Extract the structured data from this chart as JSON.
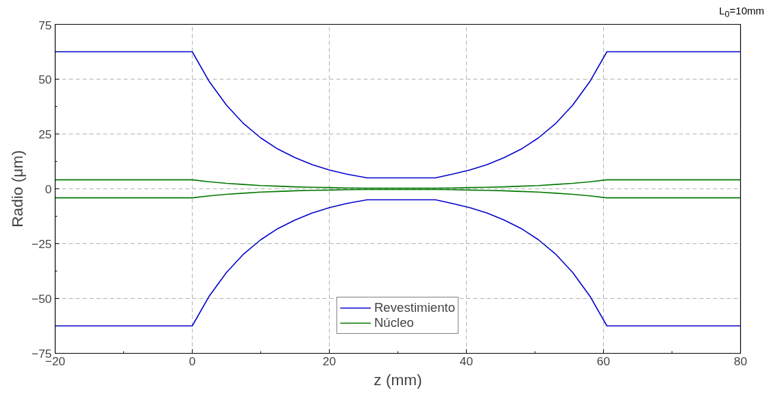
{
  "chart_data": {
    "type": "line",
    "xlabel": "z (mm)",
    "ylabel": "Radio (μm)",
    "annotations": [
      "L$_{0}$=10mm"
    ],
    "xlim": [
      -20,
      80
    ],
    "xticks": [
      -20,
      0,
      20,
      40,
      60,
      80
    ],
    "ylim": [
      -75,
      75
    ],
    "yticks": [
      -75,
      -50,
      -25,
      0,
      25,
      50,
      75
    ],
    "grid": true,
    "legend": "bottom",
    "line_style": "solid",
    "marker": "none",
    "x": [
      -20,
      0,
      2.5,
      5,
      7.5,
      10,
      12.5,
      15,
      17.5,
      20,
      22.5,
      25.5,
      35.5,
      38,
      40.5,
      43,
      45.5,
      48,
      50.5,
      53,
      55.5,
      58,
      60.5,
      80
    ],
    "series": [
      {
        "name": "Revestimiento",
        "color": "#0000cc",
        "values": [
          62.5,
          62.5,
          48.8,
          38.1,
          29.7,
          23.2,
          18.1,
          14.2,
          11.0,
          8.6,
          6.7,
          5.0,
          5.0,
          6.7,
          8.6,
          11.0,
          14.2,
          18.1,
          23.2,
          29.7,
          38.1,
          48.8,
          62.5,
          62.5
        ]
      },
      {
        "color": "#0000cc",
        "values": [
          -62.5,
          -62.5,
          -48.8,
          -38.1,
          -29.7,
          -23.2,
          -18.1,
          -14.2,
          -11.0,
          -8.6,
          -6.7,
          -5.0,
          -5.0,
          -6.7,
          -8.6,
          -11.0,
          -14.2,
          -18.1,
          -23.2,
          -29.7,
          -38.1,
          -48.8,
          -62.5,
          -62.5
        ]
      },
      {
        "name": "Núcleo",
        "color": "#007700",
        "values": [
          4.1,
          4.1,
          3.2,
          2.5,
          2.0,
          1.5,
          1.2,
          0.9,
          0.7,
          0.6,
          0.4,
          0.3,
          0.3,
          0.4,
          0.6,
          0.7,
          0.9,
          1.2,
          1.5,
          2.0,
          2.5,
          3.2,
          4.1,
          4.1
        ]
      },
      {
        "color": "#007700",
        "values": [
          -4.1,
          -4.1,
          -3.2,
          -2.5,
          -2.0,
          -1.5,
          -1.2,
          -0.9,
          -0.7,
          -0.6,
          -0.4,
          -0.3,
          -0.3,
          -0.4,
          -0.6,
          -0.7,
          -0.9,
          -1.2,
          -1.5,
          -2.0,
          -2.5,
          -3.2,
          -4.1,
          -4.1
        ]
      }
    ]
  }
}
